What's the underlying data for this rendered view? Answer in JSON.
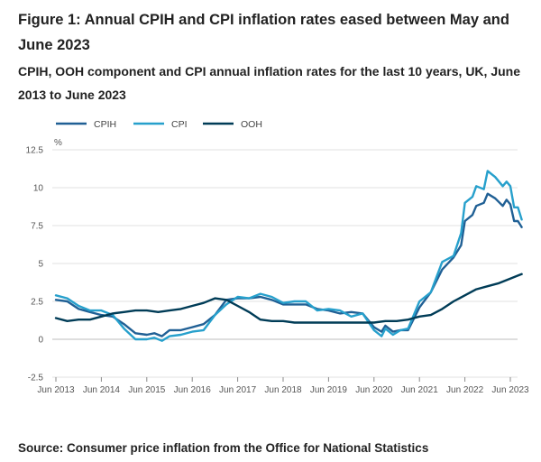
{
  "title": "Figure 1: Annual CPIH and CPI inflation rates eased between May and June 2023",
  "subtitle": "CPIH, OOH component and CPI annual inflation rates for the last 10 years, UK, June 2013 to June 2023",
  "source": "Source: Consumer price inflation from the Office for National Statistics",
  "chart_data": {
    "type": "line",
    "title": "Figure 1: Annual CPIH and CPI inflation rates eased between May and June 2023",
    "subtitle": "CPIH, OOH component and CPI annual inflation rates for the last 10 years, UK, June 2013 to June 2023",
    "xlabel": "",
    "ylabel": "%",
    "ylim": [
      -2.5,
      12.5
    ],
    "yticks": [
      -2.5,
      0,
      2.5,
      5,
      7.5,
      10,
      12.5
    ],
    "ytick_labels": [
      "-2.5",
      "0",
      "2.5",
      "5",
      "7.5",
      "10",
      "12.5"
    ],
    "xticks": [
      "Jun 2013",
      "Jun 2014",
      "Jun 2015",
      "Jun 2016",
      "Jun 2017",
      "Jun 2018",
      "Jun 2019",
      "Jun 2020",
      "Jun 2021",
      "Jun 2022",
      "Jun 2023"
    ],
    "legend_position": "top-left",
    "grid": "horizontal",
    "x_unit": "months since Jun 2013",
    "series": [
      {
        "name": "CPIH",
        "color": "#206095",
        "points": [
          [
            0,
            2.6
          ],
          [
            3,
            2.5
          ],
          [
            6,
            2.0
          ],
          [
            9,
            1.8
          ],
          [
            12,
            1.6
          ],
          [
            15,
            1.5
          ],
          [
            18,
            1.0
          ],
          [
            21,
            0.4
          ],
          [
            24,
            0.3
          ],
          [
            26,
            0.4
          ],
          [
            28,
            0.2
          ],
          [
            30,
            0.6
          ],
          [
            33,
            0.6
          ],
          [
            36,
            0.8
          ],
          [
            39,
            1.0
          ],
          [
            42,
            1.6
          ],
          [
            45,
            2.6
          ],
          [
            48,
            2.7
          ],
          [
            51,
            2.7
          ],
          [
            54,
            2.8
          ],
          [
            57,
            2.6
          ],
          [
            60,
            2.3
          ],
          [
            63,
            2.3
          ],
          [
            66,
            2.3
          ],
          [
            69,
            2.0
          ],
          [
            72,
            1.9
          ],
          [
            75,
            1.7
          ],
          [
            78,
            1.8
          ],
          [
            81,
            1.7
          ],
          [
            84,
            0.8
          ],
          [
            86,
            0.5
          ],
          [
            87,
            0.9
          ],
          [
            89,
            0.5
          ],
          [
            91,
            0.6
          ],
          [
            93,
            0.6
          ],
          [
            96,
            2.1
          ],
          [
            99,
            3.1
          ],
          [
            102,
            4.6
          ],
          [
            105,
            5.4
          ],
          [
            107,
            6.2
          ],
          [
            108,
            7.8
          ],
          [
            110,
            8.2
          ],
          [
            111,
            8.8
          ],
          [
            113,
            9.0
          ],
          [
            114,
            9.6
          ],
          [
            116,
            9.3
          ],
          [
            118,
            8.8
          ],
          [
            119,
            9.2
          ],
          [
            120,
            8.9
          ],
          [
            121,
            7.8
          ],
          [
            122,
            7.8
          ],
          [
            123,
            7.4
          ]
        ]
      },
      {
        "name": "CPI",
        "color": "#27a0cc",
        "points": [
          [
            0,
            2.9
          ],
          [
            3,
            2.7
          ],
          [
            6,
            2.2
          ],
          [
            9,
            1.9
          ],
          [
            12,
            1.9
          ],
          [
            15,
            1.6
          ],
          [
            18,
            0.7
          ],
          [
            21,
            0.0
          ],
          [
            24,
            0.0
          ],
          [
            26,
            0.1
          ],
          [
            28,
            -0.1
          ],
          [
            30,
            0.2
          ],
          [
            33,
            0.3
          ],
          [
            36,
            0.5
          ],
          [
            39,
            0.6
          ],
          [
            42,
            1.6
          ],
          [
            45,
            2.3
          ],
          [
            48,
            2.8
          ],
          [
            51,
            2.7
          ],
          [
            54,
            3.0
          ],
          [
            57,
            2.8
          ],
          [
            60,
            2.4
          ],
          [
            63,
            2.5
          ],
          [
            66,
            2.5
          ],
          [
            69,
            1.9
          ],
          [
            72,
            2.0
          ],
          [
            75,
            1.9
          ],
          [
            78,
            1.5
          ],
          [
            81,
            1.7
          ],
          [
            84,
            0.6
          ],
          [
            86,
            0.2
          ],
          [
            87,
            0.7
          ],
          [
            89,
            0.3
          ],
          [
            91,
            0.6
          ],
          [
            93,
            0.7
          ],
          [
            96,
            2.5
          ],
          [
            99,
            3.1
          ],
          [
            102,
            5.1
          ],
          [
            105,
            5.5
          ],
          [
            107,
            7.0
          ],
          [
            108,
            9.0
          ],
          [
            110,
            9.4
          ],
          [
            111,
            10.1
          ],
          [
            113,
            9.9
          ],
          [
            114,
            11.1
          ],
          [
            116,
            10.7
          ],
          [
            118,
            10.1
          ],
          [
            119,
            10.4
          ],
          [
            120,
            10.1
          ],
          [
            121,
            8.7
          ],
          [
            122,
            8.7
          ],
          [
            123,
            7.9
          ]
        ]
      },
      {
        "name": "OOH",
        "color": "#003c57",
        "points": [
          [
            0,
            1.4
          ],
          [
            3,
            1.2
          ],
          [
            6,
            1.3
          ],
          [
            9,
            1.3
          ],
          [
            12,
            1.5
          ],
          [
            15,
            1.7
          ],
          [
            18,
            1.8
          ],
          [
            21,
            1.9
          ],
          [
            24,
            1.9
          ],
          [
            27,
            1.8
          ],
          [
            30,
            1.9
          ],
          [
            33,
            2.0
          ],
          [
            36,
            2.2
          ],
          [
            39,
            2.4
          ],
          [
            42,
            2.7
          ],
          [
            45,
            2.6
          ],
          [
            48,
            2.2
          ],
          [
            51,
            1.8
          ],
          [
            54,
            1.3
          ],
          [
            57,
            1.2
          ],
          [
            60,
            1.2
          ],
          [
            63,
            1.1
          ],
          [
            66,
            1.1
          ],
          [
            69,
            1.1
          ],
          [
            72,
            1.1
          ],
          [
            75,
            1.1
          ],
          [
            78,
            1.1
          ],
          [
            81,
            1.1
          ],
          [
            84,
            1.1
          ],
          [
            87,
            1.2
          ],
          [
            90,
            1.2
          ],
          [
            93,
            1.3
          ],
          [
            96,
            1.5
          ],
          [
            99,
            1.6
          ],
          [
            102,
            2.0
          ],
          [
            105,
            2.5
          ],
          [
            108,
            2.9
          ],
          [
            111,
            3.3
          ],
          [
            114,
            3.5
          ],
          [
            117,
            3.7
          ],
          [
            120,
            4.0
          ],
          [
            122,
            4.2
          ],
          [
            123,
            4.3
          ]
        ]
      }
    ]
  }
}
